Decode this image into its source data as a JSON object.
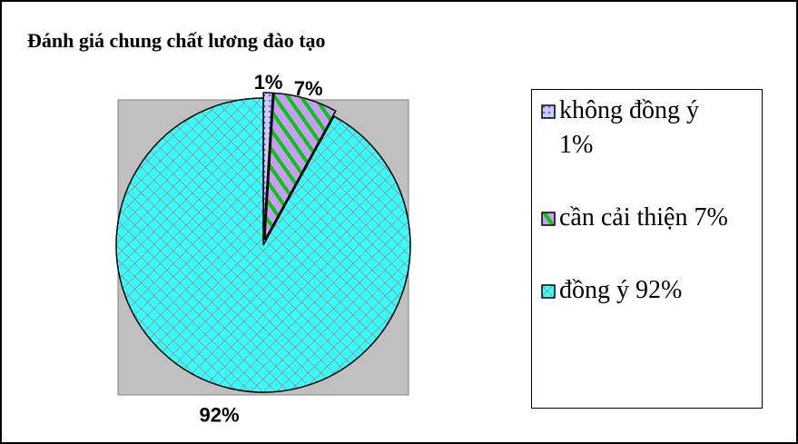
{
  "chart_data": {
    "type": "pie",
    "title": "Đánh giá chung chất lương đào tạo",
    "categories": [
      "không đồng ý 1%",
      "cần cải thiện 7%",
      "đồng ý 92%"
    ],
    "values": [
      1,
      7,
      92
    ],
    "value_labels": [
      "1%",
      "7%",
      "92%"
    ],
    "colors": [
      "#ccccff",
      "#cc99ff",
      "#33ffff"
    ]
  }
}
